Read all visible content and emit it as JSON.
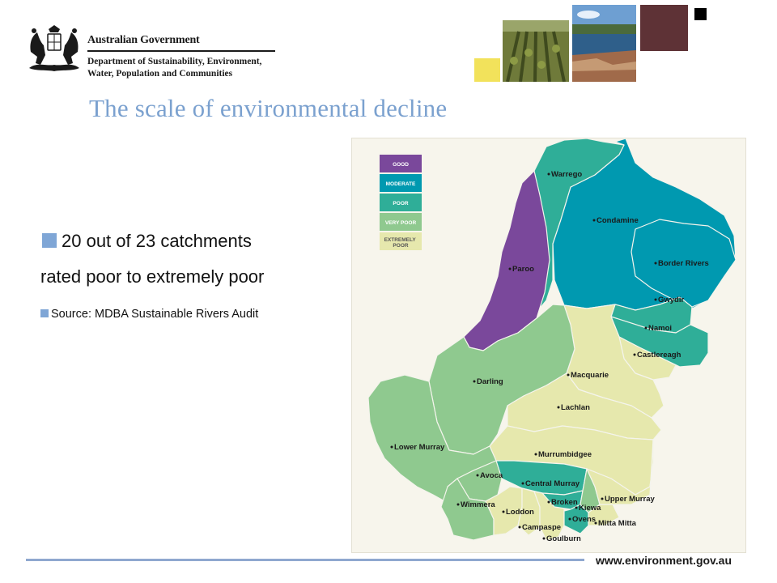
{
  "header": {
    "crest_icon": "coat-of-arms-icon",
    "government": "Australian Government",
    "department_line1": "Department of Sustainability, Environment,",
    "department_line2": "Water, Population and Communities"
  },
  "title": "The scale of environmental decline",
  "bullets": {
    "main_line1": "20 out of 23 catchments",
    "main_line2": "rated poor to extremely poor",
    "source": "Source: MDBA Sustainable Rivers Audit"
  },
  "map": {
    "legend": [
      {
        "label": "GOOD",
        "color": "#7a489b"
      },
      {
        "label": "MODERATE",
        "color": "#0099b0"
      },
      {
        "label": "POOR",
        "color": "#2fae98"
      },
      {
        "label": "VERY POOR",
        "color": "#8fc98f"
      },
      {
        "label": "EXTREMELY POOR",
        "color": "#e6e8ad"
      }
    ],
    "catchments": [
      {
        "name": "Warrego",
        "rating": "POOR"
      },
      {
        "name": "Condamine",
        "rating": "MODERATE"
      },
      {
        "name": "Border Rivers",
        "rating": "MODERATE"
      },
      {
        "name": "Paroo",
        "rating": "GOOD"
      },
      {
        "name": "Gwydir",
        "rating": "POOR"
      },
      {
        "name": "Namoi",
        "rating": "POOR"
      },
      {
        "name": "Castlereagh",
        "rating": "EXTREMELY POOR"
      },
      {
        "name": "Darling",
        "rating": "VERY POOR"
      },
      {
        "name": "Macquarie",
        "rating": "EXTREMELY POOR"
      },
      {
        "name": "Lachlan",
        "rating": "EXTREMELY POOR"
      },
      {
        "name": "Lower Murray",
        "rating": "VERY POOR"
      },
      {
        "name": "Murrumbidgee",
        "rating": "EXTREMELY POOR"
      },
      {
        "name": "Avoca",
        "rating": "VERY POOR"
      },
      {
        "name": "Central Murray",
        "rating": "POOR"
      },
      {
        "name": "Wimmera",
        "rating": "VERY POOR"
      },
      {
        "name": "Loddon",
        "rating": "EXTREMELY POOR"
      },
      {
        "name": "Broken",
        "rating": "POOR"
      },
      {
        "name": "Kiewa",
        "rating": "VERY POOR"
      },
      {
        "name": "Upper Murray",
        "rating": "EXTREMELY POOR"
      },
      {
        "name": "Ovens",
        "rating": "POOR"
      },
      {
        "name": "Mitta Mitta",
        "rating": "EXTREMELY POOR"
      },
      {
        "name": "Campaspe",
        "rating": "EXTREMELY POOR"
      },
      {
        "name": "Goulburn",
        "rating": "EXTREMELY POOR"
      }
    ]
  },
  "footer": {
    "url": "www.environment.gov.au"
  }
}
